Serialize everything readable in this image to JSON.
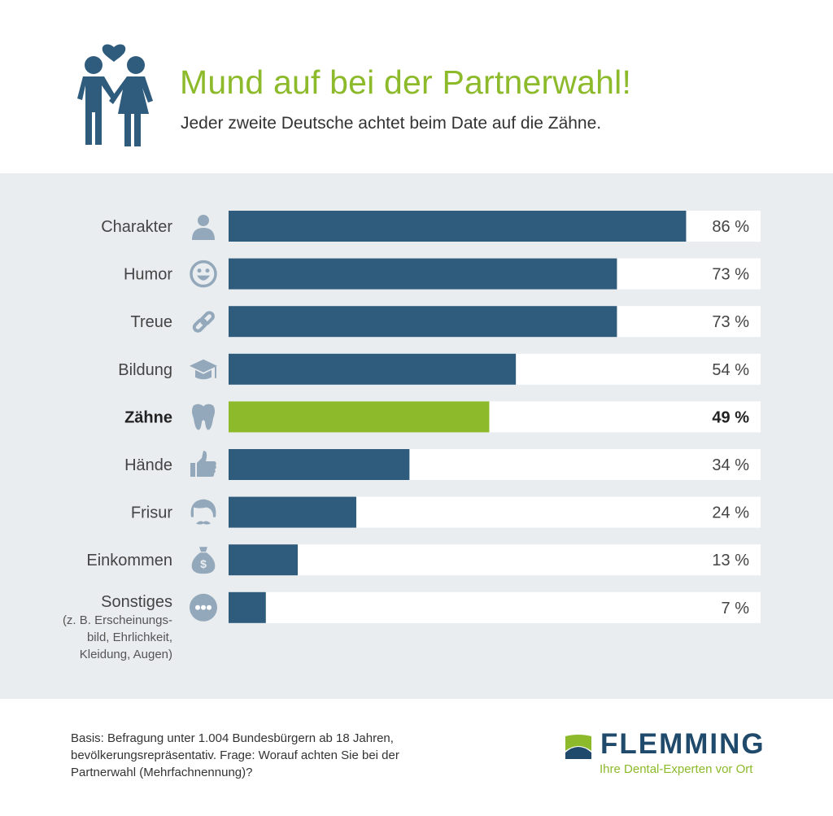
{
  "header": {
    "title": "Mund auf bei der Partnerwahl!",
    "subtitle": "Jeder zweite Deutsche achtet beim Date auf die Zähne."
  },
  "colors": {
    "bar_default": "#2f5b7c",
    "bar_highlight": "#8cba2a",
    "track": "#ffffff",
    "icon": "#93a8ba",
    "title": "#8cba2a",
    "brand_dark": "#1f4a6b"
  },
  "chart_data": {
    "type": "bar",
    "orientation": "horizontal",
    "title": "Mund auf bei der Partnerwahl!",
    "subtitle": "Jeder zweite Deutsche achtet beim Date auf die Zähne.",
    "xlabel": "",
    "ylabel": "",
    "xlim": [
      0,
      100
    ],
    "unit": "%",
    "grid": false,
    "categories": [
      "Charakter",
      "Humor",
      "Treue",
      "Bildung",
      "Zähne",
      "Hände",
      "Frisur",
      "Einkommen",
      "Sonstiges"
    ],
    "values": [
      86,
      73,
      73,
      54,
      49,
      34,
      24,
      13,
      7
    ],
    "value_labels": [
      "86 %",
      "73 %",
      "73 %",
      "54 %",
      "49 %",
      "34 %",
      "24 %",
      "13 %",
      "7 %"
    ],
    "icons": [
      "person-icon",
      "smiley-icon",
      "link-icon",
      "graduation-cap-icon",
      "tooth-icon",
      "thumbs-up-icon",
      "hairstyle-icon",
      "money-bag-icon",
      "more-icon"
    ],
    "highlight": "Zähne",
    "notes": {
      "Sonstiges": [
        "(z. B. Erscheinungs-",
        "bild, Ehrlichkeit,",
        "Kleidung, Augen)"
      ]
    }
  },
  "footer": {
    "source_lines": [
      "Basis: Befragung unter 1.004 Bundesbürgern ab 18 Jahren,",
      "bevölkerungsrepräsentativ. Frage: Worauf achten Sie bei der",
      "Partnerwahl (Mehrfachnennung)?"
    ],
    "brand_name": "FLEMMING",
    "brand_tagline": "Ihre Dental-Experten vor Ort"
  }
}
